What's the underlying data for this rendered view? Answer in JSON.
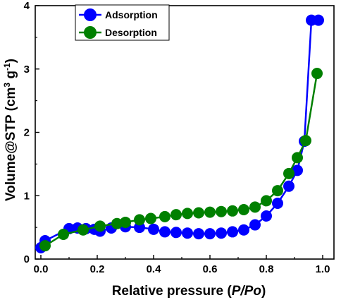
{
  "chart_data": {
    "type": "line",
    "xlabel_prefix": "Relative pressure (",
    "xlabel_italic": "P/Po",
    "xlabel_suffix": ")",
    "ylabel_main": "Volume@STP (cm",
    "ylabel_sup1": "3",
    "ylabel_mid": " g",
    "ylabel_sup2": "-1",
    "ylabel_end": ")",
    "xlim": [
      -0.02,
      1.04
    ],
    "ylim": [
      0,
      4
    ],
    "xticks": [
      "0.0",
      "0.2",
      "0.4",
      "0.6",
      "0.8",
      "1.0"
    ],
    "xtick_values": [
      0.0,
      0.2,
      0.4,
      0.6,
      0.8,
      1.0
    ],
    "yticks": [
      "0",
      "1",
      "2",
      "3",
      "4"
    ],
    "ytick_values": [
      0,
      1,
      2,
      3,
      4
    ],
    "legend_position": "top-left",
    "series": [
      {
        "name": "Adsorption",
        "color": "#0000ff",
        "x": [
          0.0,
          0.015,
          0.1,
          0.13,
          0.16,
          0.19,
          0.21,
          0.25,
          0.3,
          0.35,
          0.4,
          0.44,
          0.48,
          0.52,
          0.56,
          0.6,
          0.64,
          0.68,
          0.72,
          0.76,
          0.8,
          0.84,
          0.88,
          0.91,
          0.935,
          0.96,
          0.985
        ],
        "y": [
          0.18,
          0.29,
          0.48,
          0.49,
          0.48,
          0.47,
          0.44,
          0.49,
          0.51,
          0.5,
          0.47,
          0.43,
          0.42,
          0.41,
          0.4,
          0.4,
          0.41,
          0.43,
          0.46,
          0.54,
          0.68,
          0.88,
          1.15,
          1.4,
          1.86,
          3.77,
          3.77
        ]
      },
      {
        "name": "Desorption",
        "color": "#008000",
        "x": [
          0.015,
          0.08,
          0.15,
          0.21,
          0.27,
          0.3,
          0.35,
          0.39,
          0.44,
          0.48,
          0.52,
          0.56,
          0.6,
          0.64,
          0.68,
          0.72,
          0.76,
          0.8,
          0.84,
          0.88,
          0.91,
          0.94,
          0.98
        ],
        "y": [
          0.21,
          0.39,
          0.46,
          0.52,
          0.56,
          0.58,
          0.62,
          0.64,
          0.67,
          0.7,
          0.72,
          0.73,
          0.74,
          0.75,
          0.76,
          0.78,
          0.82,
          0.92,
          1.08,
          1.35,
          1.6,
          1.87,
          2.93
        ]
      }
    ]
  }
}
